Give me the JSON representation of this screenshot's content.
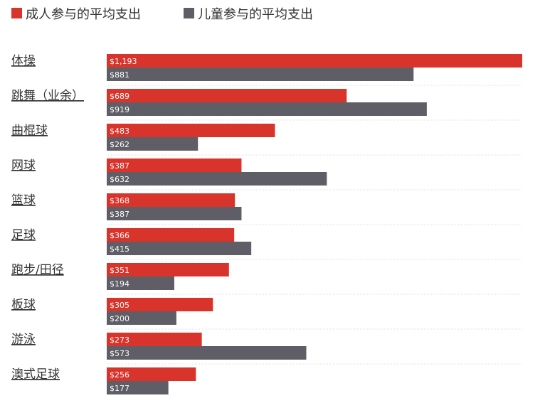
{
  "chart_data": {
    "type": "bar",
    "orientation": "horizontal",
    "categories": [
      "体操",
      "跳舞（业余）",
      "曲棍球",
      "网球",
      "篮球",
      "足球",
      "跑步/田径",
      "板球",
      "游泳",
      "澳式足球"
    ],
    "series": [
      {
        "name": "成人参与的平均支出",
        "color": "#d9342b",
        "values": [
          1193,
          689,
          483,
          387,
          368,
          366,
          351,
          305,
          273,
          256
        ],
        "labels": [
          "$1,193",
          "$689",
          "$483",
          "$387",
          "$368",
          "$366",
          "$351",
          "$305",
          "$273",
          "$256"
        ]
      },
      {
        "name": "儿童参与的平均支出",
        "color": "#5f5e66",
        "values": [
          881,
          919,
          262,
          632,
          387,
          415,
          194,
          200,
          573,
          177
        ],
        "labels": [
          "$881",
          "$919",
          "$262",
          "$632",
          "$387",
          "$415",
          "$194",
          "$200",
          "$573",
          "$177"
        ]
      }
    ],
    "xlim": [
      0,
      1193
    ],
    "legend": "top-left",
    "grid": false
  }
}
